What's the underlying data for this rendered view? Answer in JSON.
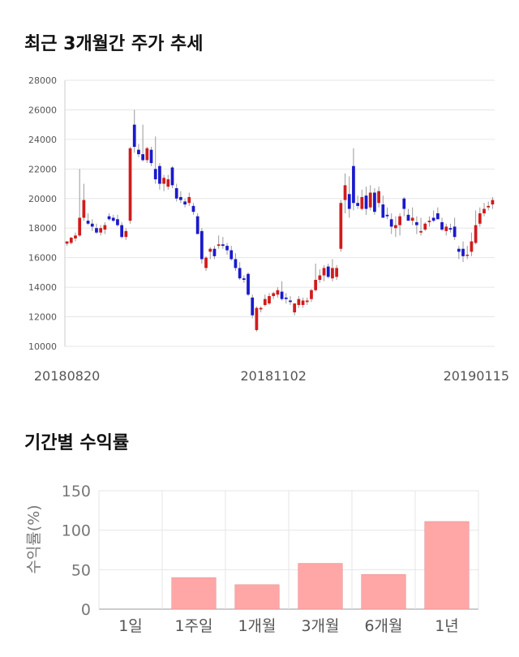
{
  "sections": {
    "price_title": "최근 3개월간 주가 추세",
    "returns_title": "기간별 수익률"
  },
  "chart_data": [
    {
      "type": "candlestick",
      "ylim": [
        10000,
        28000
      ],
      "yticks": [
        10000,
        12000,
        14000,
        16000,
        18000,
        20000,
        22000,
        24000,
        26000,
        28000
      ],
      "xtick_labels": [
        "20180820",
        "20181102",
        "20190115"
      ],
      "xtick_index": [
        0,
        49,
        100
      ],
      "colors": {
        "up": "#d11b1b",
        "down": "#1a1acc",
        "wick": "#999999"
      },
      "candles": [
        [
          16950,
          17100,
          16800,
          17100
        ],
        [
          17000,
          17400,
          16900,
          17350
        ],
        [
          17300,
          17700,
          17100,
          17500
        ],
        [
          17500,
          22000,
          17400,
          18700
        ],
        [
          18700,
          21000,
          18500,
          19900
        ],
        [
          18500,
          19000,
          18200,
          18300
        ],
        [
          18300,
          18600,
          17800,
          18100
        ],
        [
          18000,
          18300,
          17600,
          17700
        ],
        [
          17700,
          18200,
          17500,
          18000
        ],
        [
          17900,
          18400,
          17600,
          18200
        ],
        [
          18800,
          19000,
          18500,
          18600
        ],
        [
          18700,
          18900,
          18400,
          18500
        ],
        [
          18600,
          18900,
          18100,
          18200
        ],
        [
          18200,
          18400,
          17300,
          17400
        ],
        [
          17400,
          18000,
          17200,
          17800
        ],
        [
          18500,
          23500,
          18300,
          23400
        ],
        [
          25000,
          26000,
          23100,
          23500
        ],
        [
          23300,
          23700,
          22800,
          23000
        ],
        [
          23000,
          25000,
          22500,
          22600
        ],
        [
          22600,
          23500,
          22400,
          23400
        ],
        [
          23300,
          23500,
          22200,
          22400
        ],
        [
          22000,
          24200,
          21000,
          21300
        ],
        [
          22200,
          22400,
          20600,
          21000
        ],
        [
          21000,
          21600,
          20500,
          21400
        ],
        [
          20800,
          21600,
          20600,
          21300
        ],
        [
          22100,
          22200,
          20700,
          20900
        ],
        [
          20700,
          21000,
          19800,
          20000
        ],
        [
          20100,
          20500,
          19700,
          19900
        ],
        [
          19800,
          20000,
          19400,
          19600
        ],
        [
          19700,
          20400,
          19500,
          20100
        ],
        [
          19500,
          19700,
          18900,
          19100
        ],
        [
          18800,
          19000,
          17600,
          17600
        ],
        [
          17800,
          18000,
          15600,
          15900
        ],
        [
          15300,
          16100,
          15100,
          16000
        ],
        [
          16400,
          16700,
          15900,
          16600
        ],
        [
          16600,
          16800,
          15900,
          16100
        ],
        [
          16800,
          17500,
          16600,
          16900
        ],
        [
          16900,
          17400,
          16600,
          16800
        ],
        [
          16800,
          17000,
          16200,
          16500
        ],
        [
          16500,
          16800,
          15800,
          15900
        ],
        [
          15900,
          16300,
          15100,
          15300
        ],
        [
          15300,
          15700,
          14500,
          14600
        ],
        [
          14600,
          14800,
          14300,
          14500
        ],
        [
          14900,
          15000,
          13400,
          13500
        ],
        [
          13300,
          13500,
          11900,
          12100
        ],
        [
          11100,
          12700,
          11000,
          12600
        ],
        [
          12500,
          12700,
          12300,
          12600
        ],
        [
          12800,
          13500,
          12700,
          13200
        ],
        [
          12900,
          13600,
          12800,
          13400
        ],
        [
          13400,
          13700,
          13200,
          13600
        ],
        [
          13500,
          14000,
          13300,
          13800
        ],
        [
          13700,
          14400,
          13100,
          13200
        ],
        [
          13300,
          13600,
          12900,
          13200
        ],
        [
          13100,
          13400,
          12800,
          13000
        ],
        [
          12300,
          12900,
          12100,
          12900
        ],
        [
          12800,
          13400,
          12600,
          13200
        ],
        [
          12800,
          13300,
          12600,
          13100
        ],
        [
          13000,
          13300,
          12800,
          13100
        ],
        [
          13200,
          13900,
          13000,
          13800
        ],
        [
          13800,
          15600,
          13700,
          14500
        ],
        [
          14500,
          15200,
          14300,
          14800
        ],
        [
          14800,
          15500,
          14400,
          15300
        ],
        [
          15400,
          15600,
          14600,
          14700
        ],
        [
          14600,
          15900,
          14400,
          15300
        ],
        [
          14700,
          15500,
          14500,
          15300
        ],
        [
          16600,
          19900,
          16400,
          19700
        ],
        [
          19900,
          21700,
          19000,
          20900
        ],
        [
          20300,
          21500,
          18700,
          19300
        ],
        [
          22200,
          23400,
          19200,
          19700
        ],
        [
          19700,
          20200,
          19300,
          19500
        ],
        [
          19300,
          20600,
          19200,
          20100
        ],
        [
          20200,
          20800,
          18900,
          19300
        ],
        [
          19400,
          20900,
          19200,
          20400
        ],
        [
          20400,
          20700,
          18900,
          19100
        ],
        [
          19700,
          20800,
          19400,
          20500
        ],
        [
          19600,
          20200,
          18800,
          18700
        ],
        [
          18900,
          19400,
          18600,
          18800
        ],
        [
          18600,
          19000,
          17600,
          18100
        ],
        [
          18000,
          18800,
          17400,
          18200
        ],
        [
          18200,
          19000,
          17500,
          18800
        ],
        [
          20000,
          20100,
          18800,
          19300
        ],
        [
          18900,
          19300,
          18500,
          18500
        ],
        [
          18500,
          19400,
          18200,
          18700
        ],
        [
          18400,
          18800,
          17600,
          18200
        ],
        [
          17700,
          18700,
          17500,
          17800
        ],
        [
          17900,
          18400,
          17800,
          18300
        ],
        [
          18400,
          18800,
          18100,
          18500
        ],
        [
          18700,
          19200,
          18400,
          18500
        ],
        [
          19000,
          19400,
          18600,
          18600
        ],
        [
          18400,
          18700,
          17800,
          17900
        ],
        [
          17800,
          18300,
          17500,
          18100
        ],
        [
          18000,
          18300,
          17700,
          17900
        ],
        [
          18100,
          18700,
          17200,
          17400
        ],
        [
          16600,
          16800,
          15900,
          16400
        ],
        [
          16600,
          17100,
          15700,
          16100
        ],
        [
          16200,
          16800,
          15900,
          16200
        ],
        [
          16400,
          17700,
          16100,
          17100
        ],
        [
          17000,
          19200,
          16900,
          18200
        ],
        [
          18300,
          19400,
          18100,
          19000
        ],
        [
          19000,
          19700,
          18800,
          19300
        ],
        [
          19400,
          19800,
          19200,
          19500
        ],
        [
          19600,
          20100,
          19300,
          19900
        ]
      ]
    },
    {
      "type": "bar",
      "categories": [
        "1일",
        "1주일",
        "1개월",
        "3개월",
        "6개월",
        "1년"
      ],
      "values": [
        0,
        40,
        31,
        58,
        44,
        111
      ],
      "ylabel": "수익률(%)",
      "ylim": [
        0,
        150
      ],
      "yticks": [
        0,
        50,
        100,
        150
      ],
      "bar_color": "#ffa6a6"
    }
  ]
}
